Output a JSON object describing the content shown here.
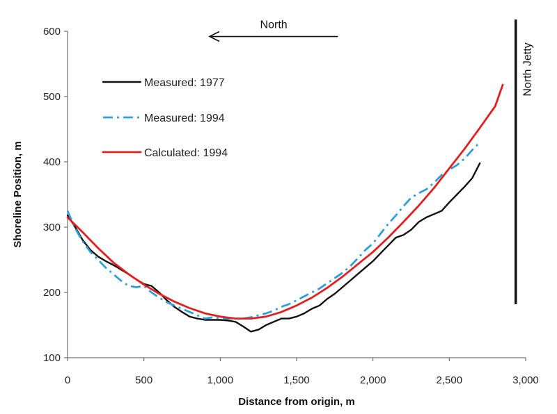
{
  "chart_data": {
    "type": "line",
    "title": "",
    "xlabel": "Distance from origin, m",
    "ylabel": "Shoreline Position, m",
    "xlim": [
      0,
      3000
    ],
    "ylim": [
      100,
      600
    ],
    "x_ticks": [
      "0",
      "500",
      "1,000",
      "1,500",
      "2,000",
      "2,500",
      "3,000"
    ],
    "x_tick_values": [
      0,
      500,
      1000,
      1500,
      2000,
      2500,
      3000
    ],
    "y_ticks": [
      "100",
      "200",
      "300",
      "400",
      "500",
      "600"
    ],
    "y_tick_values": [
      100,
      200,
      300,
      400,
      500,
      600
    ],
    "grid": false,
    "legend_position": "top-left",
    "series": [
      {
        "name": "Measured: 1977",
        "color": "#111111",
        "style": "solid",
        "x": [
          0,
          50,
          100,
          150,
          200,
          250,
          300,
          350,
          400,
          450,
          500,
          550,
          600,
          650,
          700,
          750,
          800,
          850,
          900,
          950,
          1000,
          1050,
          1100,
          1150,
          1200,
          1250,
          1300,
          1350,
          1400,
          1450,
          1500,
          1550,
          1600,
          1650,
          1700,
          1750,
          1800,
          1850,
          1900,
          1950,
          2000,
          2050,
          2100,
          2150,
          2200,
          2250,
          2300,
          2350,
          2400,
          2450,
          2500,
          2550,
          2600,
          2650,
          2700
        ],
        "y": [
          318,
          300,
          280,
          265,
          255,
          248,
          242,
          235,
          228,
          220,
          213,
          210,
          200,
          188,
          178,
          170,
          163,
          160,
          158,
          158,
          158,
          157,
          155,
          148,
          140,
          143,
          150,
          155,
          160,
          160,
          163,
          168,
          175,
          180,
          190,
          198,
          208,
          218,
          228,
          238,
          248,
          260,
          272,
          284,
          288,
          296,
          308,
          315,
          320,
          325,
          338,
          350,
          362,
          375,
          398
        ]
      },
      {
        "name": "Measured: 1994",
        "color": "#2e9fd8",
        "style": "dashdot",
        "x": [
          0,
          50,
          100,
          150,
          200,
          250,
          300,
          350,
          400,
          450,
          500,
          550,
          600,
          650,
          700,
          750,
          800,
          850,
          900,
          950,
          1000,
          1050,
          1100,
          1150,
          1200,
          1250,
          1300,
          1350,
          1400,
          1450,
          1500,
          1550,
          1600,
          1650,
          1700,
          1750,
          1800,
          1850,
          1900,
          1950,
          2000,
          2050,
          2100,
          2150,
          2200,
          2250,
          2300,
          2350,
          2400,
          2450,
          2500,
          2550,
          2600,
          2650,
          2700
        ],
        "y": [
          325,
          298,
          278,
          262,
          250,
          238,
          228,
          218,
          210,
          208,
          210,
          200,
          192,
          185,
          180,
          175,
          170,
          165,
          160,
          162,
          160,
          160,
          160,
          160,
          162,
          165,
          168,
          172,
          178,
          182,
          188,
          194,
          200,
          206,
          214,
          222,
          230,
          240,
          252,
          265,
          275,
          290,
          305,
          318,
          332,
          345,
          352,
          358,
          368,
          380,
          388,
          395,
          405,
          418,
          430
        ]
      },
      {
        "name": "Calculated: 1994",
        "color": "#e02020",
        "style": "solid",
        "x": [
          0,
          100,
          200,
          300,
          400,
          500,
          600,
          700,
          800,
          900,
          1000,
          1100,
          1200,
          1300,
          1400,
          1500,
          1600,
          1700,
          1800,
          1900,
          2000,
          2100,
          2200,
          2300,
          2400,
          2500,
          2600,
          2700,
          2800,
          2850
        ],
        "y": [
          315,
          292,
          268,
          246,
          228,
          212,
          198,
          186,
          176,
          168,
          163,
          160,
          160,
          163,
          170,
          180,
          192,
          207,
          224,
          243,
          262,
          284,
          308,
          333,
          360,
          390,
          420,
          452,
          485,
          518
        ]
      }
    ],
    "annotations": {
      "north_label": "North",
      "jetty_label": "North Jetty",
      "jetty_x": 2935,
      "jetty_y_range": [
        182,
        618
      ],
      "arrow_from_x": 1770,
      "arrow_to_x": 930,
      "arrow_y": 592
    }
  }
}
